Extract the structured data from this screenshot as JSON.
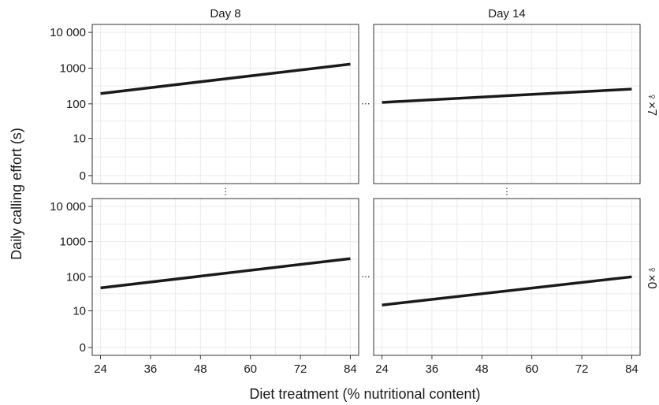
{
  "chart_data": {
    "type": "line",
    "xlabel": "Diet treatment (% nutritional content)",
    "ylabel": "Daily calling effort (s)",
    "y_scale": "log1p",
    "x_ticks": [
      24,
      36,
      48,
      60,
      72,
      84
    ],
    "x_range": [
      22,
      86
    ],
    "y_ticks": [
      0,
      10,
      100,
      1000,
      10000
    ],
    "y_tick_labels": [
      "0",
      "10",
      "100",
      "1000",
      "10 000"
    ],
    "y_range": [
      0,
      10000
    ],
    "grid": true,
    "gap_marker": "⋮",
    "column_labels": [
      "Day 8",
      "Day 14"
    ],
    "row_labels": [
      "♀×7",
      "♀×0"
    ],
    "panels": [
      {
        "column": "Day 8",
        "row": "♀×7",
        "x": [
          24,
          84
        ],
        "y": [
          195,
          1300
        ]
      },
      {
        "column": "Day 14",
        "row": "♀×7",
        "x": [
          24,
          84
        ],
        "y": [
          110,
          260
        ]
      },
      {
        "column": "Day 8",
        "row": "♀×0",
        "x": [
          24,
          84
        ],
        "y": [
          48,
          330
        ]
      },
      {
        "column": "Day 14",
        "row": "♀×0",
        "x": [
          24,
          84
        ],
        "y": [
          15,
          100
        ]
      }
    ]
  }
}
